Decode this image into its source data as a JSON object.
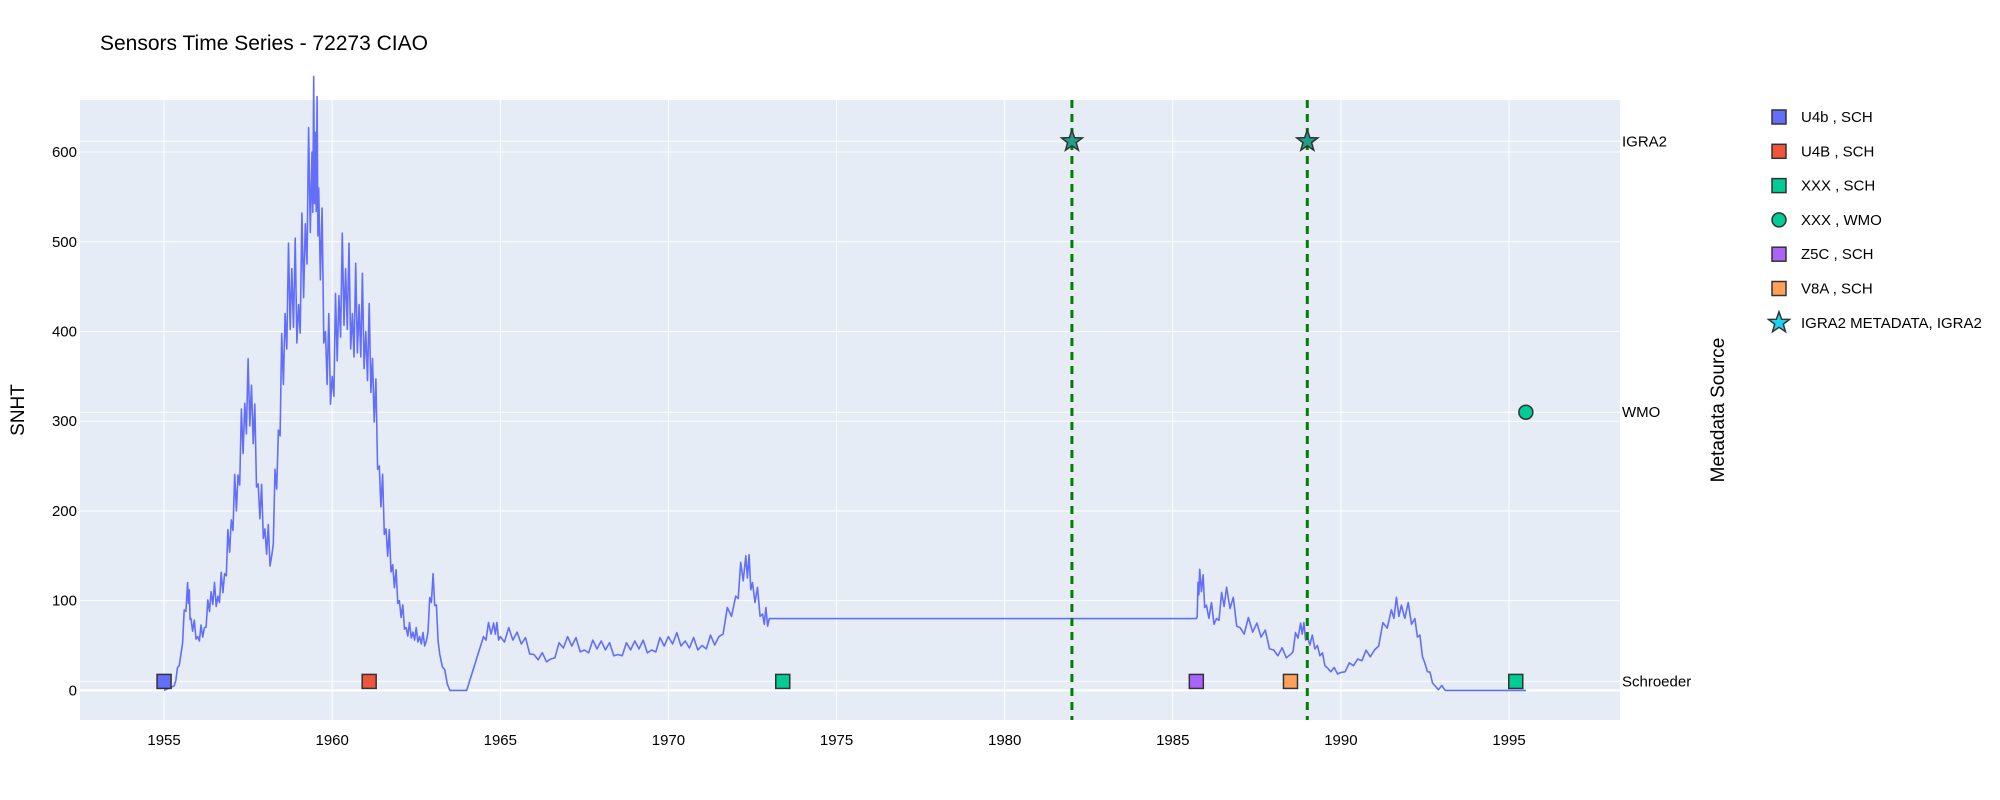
{
  "chart_data": {
    "type": "line",
    "title": "Sensors Time Series - 72273 CIAO",
    "ylabel": "SNHT",
    "y2label": "Metadata Source",
    "xlim": [
      1952.5,
      1998.3
    ],
    "ylim": [
      -33,
      658
    ],
    "x_ticks": [
      1955,
      1960,
      1965,
      1970,
      1975,
      1980,
      1985,
      1990,
      1995
    ],
    "y_ticks": [
      0,
      100,
      200,
      300,
      400,
      500,
      600
    ],
    "y2_categories": [
      {
        "label": "IGRA2",
        "y": 612
      },
      {
        "label": "WMO",
        "y": 310
      },
      {
        "label": "Schroeder",
        "y": 10
      }
    ],
    "vlines": [
      1982.0,
      1989.0
    ],
    "snht_series": {
      "name": "SNHT",
      "x": [
        1955.0,
        1955.3,
        1955.5,
        1955.7,
        1955.8,
        1956.0,
        1956.2,
        1956.4,
        1956.6,
        1956.8,
        1957.0,
        1957.2,
        1957.4,
        1957.6,
        1957.8,
        1958.0,
        1958.2,
        1958.4,
        1958.6,
        1958.8,
        1959.0,
        1959.2,
        1959.4,
        1959.5,
        1959.6,
        1959.8,
        1960.0,
        1960.2,
        1960.4,
        1960.6,
        1960.8,
        1961.0,
        1961.2,
        1961.4,
        1961.6,
        1961.8,
        1962.0,
        1962.2,
        1962.4,
        1962.6,
        1962.8,
        1963.0,
        1963.2,
        1963.5,
        1963.6,
        1963.8,
        1964.0,
        1964.5,
        1964.8,
        1965.0,
        1965.5,
        1966.0,
        1966.5,
        1967.0,
        1967.5,
        1968.0,
        1968.5,
        1969.0,
        1969.5,
        1970.0,
        1970.5,
        1971.0,
        1971.5,
        1972.0,
        1972.3,
        1972.5,
        1972.8,
        1973.0,
        1981.0,
        1985.7,
        1985.8,
        1986.0,
        1986.3,
        1986.6,
        1987.0,
        1987.5,
        1988.0,
        1988.5,
        1988.8,
        1989.0,
        1989.3,
        1989.6,
        1990.0,
        1990.5,
        1991.0,
        1991.5,
        1991.8,
        1992.2,
        1992.5,
        1992.8,
        1993.2,
        1993.5,
        1994.0,
        1995.0,
        1995.5
      ],
      "y": [
        0,
        5,
        40,
        120,
        80,
        60,
        70,
        110,
        105,
        130,
        190,
        240,
        320,
        340,
        230,
        180,
        150,
        290,
        420,
        470,
        430,
        520,
        600,
        622,
        560,
        400,
        350,
        440,
        470,
        420,
        430,
        400,
        370,
        250,
        180,
        140,
        100,
        70,
        65,
        60,
        55,
        130,
        40,
        0,
        0,
        0,
        0,
        60,
        75,
        60,
        65,
        40,
        35,
        60,
        45,
        55,
        40,
        55,
        45,
        60,
        55,
        50,
        60,
        105,
        150,
        120,
        85,
        80,
        80,
        80,
        135,
        95,
        80,
        115,
        70,
        75,
        45,
        40,
        75,
        60,
        50,
        25,
        20,
        35,
        45,
        90,
        95,
        80,
        30,
        5,
        0,
        0,
        0,
        0,
        0
      ]
    },
    "legend": [
      {
        "name": "U4b , SCH",
        "symbol": "square",
        "color": "#636efa",
        "points": [
          {
            "x": 1955.0,
            "y": 10
          }
        ]
      },
      {
        "name": "U4B , SCH",
        "symbol": "square",
        "color": "#ef553b",
        "points": [
          {
            "x": 1961.1,
            "y": 10
          }
        ]
      },
      {
        "name": "XXX , SCH",
        "symbol": "square",
        "color": "#00cc96",
        "points": [
          {
            "x": 1973.4,
            "y": 10
          },
          {
            "x": 1995.2,
            "y": 10
          }
        ]
      },
      {
        "name": "XXX , WMO",
        "symbol": "circle",
        "color": "#00cc96",
        "points": [
          {
            "x": 1995.5,
            "y": 310
          }
        ]
      },
      {
        "name": "Z5C , SCH",
        "symbol": "square",
        "color": "#ab63fa",
        "points": [
          {
            "x": 1985.7,
            "y": 10
          }
        ]
      },
      {
        "name": "V8A , SCH",
        "symbol": "square",
        "color": "#ffa15a",
        "points": [
          {
            "x": 1988.5,
            "y": 10
          }
        ]
      },
      {
        "name": "IGRA2 METADATA, IGRA2",
        "symbol": "star",
        "color": "#19d3f3",
        "points": [
          {
            "x": 1982.0,
            "y": 612
          },
          {
            "x": 1989.0,
            "y": 612
          }
        ]
      }
    ],
    "line_color": "#636efa",
    "vline_color": "#008000",
    "plot_bg": "#e5ecf6"
  }
}
